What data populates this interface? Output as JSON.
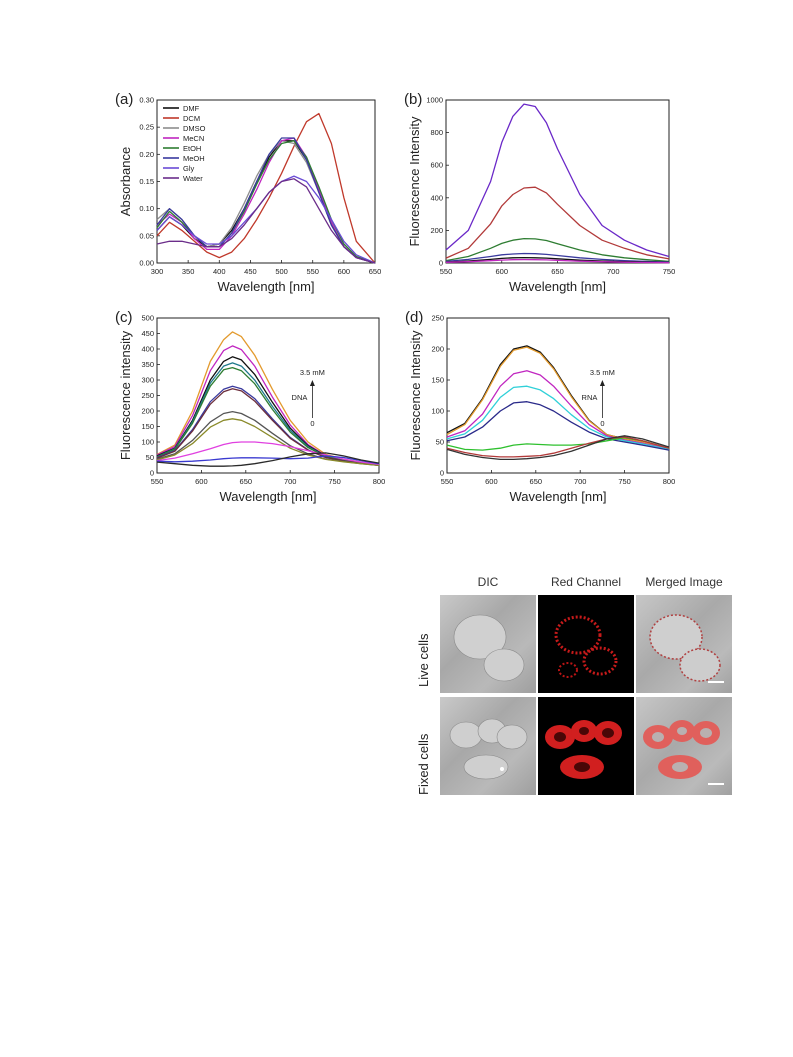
{
  "chart_data": [
    {
      "panel": "(a)",
      "type": "line",
      "xlabel": "Wavelength [nm]",
      "ylabel": "Absorbance",
      "xlim": [
        300,
        650
      ],
      "ylim": [
        0,
        0.3
      ],
      "xticks": [
        300,
        350,
        400,
        450,
        500,
        550,
        600,
        650
      ],
      "yticks": [
        0.0,
        0.05,
        0.1,
        0.15,
        0.2,
        0.25,
        0.3
      ],
      "ytick_labels": [
        "0.00",
        "0.05",
        "0.10",
        "0.15",
        "0.20",
        "0.25",
        "0.30"
      ],
      "legend": "top-left",
      "x": [
        300,
        320,
        340,
        360,
        380,
        400,
        420,
        440,
        460,
        480,
        500,
        520,
        540,
        560,
        580,
        600,
        620,
        650
      ],
      "series": [
        {
          "name": "DMF",
          "color": "#111111",
          "values": [
            0.06,
            0.085,
            0.07,
            0.045,
            0.03,
            0.035,
            0.06,
            0.1,
            0.15,
            0.195,
            0.225,
            0.225,
            0.19,
            0.13,
            0.07,
            0.03,
            0.01,
            0.0
          ]
        },
        {
          "name": "DCM",
          "color": "#c0392b",
          "values": [
            0.05,
            0.075,
            0.06,
            0.04,
            0.02,
            0.01,
            0.02,
            0.045,
            0.08,
            0.12,
            0.165,
            0.215,
            0.26,
            0.275,
            0.22,
            0.12,
            0.04,
            0.0
          ]
        },
        {
          "name": "DMSO",
          "color": "#8e8e8e",
          "values": [
            0.08,
            0.1,
            0.08,
            0.05,
            0.03,
            0.035,
            0.065,
            0.11,
            0.16,
            0.2,
            0.225,
            0.22,
            0.185,
            0.13,
            0.07,
            0.03,
            0.01,
            0.0
          ]
        },
        {
          "name": "MeCN",
          "color": "#c026c0",
          "values": [
            0.07,
            0.09,
            0.075,
            0.045,
            0.025,
            0.025,
            0.05,
            0.09,
            0.135,
            0.185,
            0.225,
            0.23,
            0.195,
            0.135,
            0.075,
            0.03,
            0.01,
            0.0
          ]
        },
        {
          "name": "EtOH",
          "color": "#2e7d32",
          "values": [
            0.065,
            0.095,
            0.075,
            0.05,
            0.03,
            0.03,
            0.055,
            0.095,
            0.145,
            0.19,
            0.22,
            0.225,
            0.195,
            0.14,
            0.08,
            0.035,
            0.012,
            0.0
          ]
        },
        {
          "name": "MeOH",
          "color": "#3a3a9e",
          "values": [
            0.07,
            0.1,
            0.08,
            0.05,
            0.03,
            0.03,
            0.055,
            0.1,
            0.15,
            0.2,
            0.23,
            0.23,
            0.19,
            0.13,
            0.07,
            0.03,
            0.01,
            0.0
          ]
        },
        {
          "name": "Gly",
          "color": "#6a4bd6",
          "values": [
            0.06,
            0.085,
            0.07,
            0.05,
            0.035,
            0.035,
            0.05,
            0.075,
            0.1,
            0.13,
            0.15,
            0.16,
            0.15,
            0.12,
            0.08,
            0.04,
            0.015,
            0.0
          ]
        },
        {
          "name": "Water",
          "color": "#6b2d8a",
          "values": [
            0.035,
            0.04,
            0.04,
            0.035,
            0.03,
            0.03,
            0.045,
            0.07,
            0.1,
            0.13,
            0.15,
            0.155,
            0.14,
            0.1,
            0.06,
            0.03,
            0.01,
            0.0
          ]
        }
      ]
    },
    {
      "panel": "(b)",
      "type": "line",
      "xlabel": "Wavelength [nm]",
      "ylabel": "Fluorescence Intensity",
      "xlim": [
        550,
        750
      ],
      "ylim": [
        0,
        1000
      ],
      "xticks": [
        550,
        600,
        650,
        700,
        750
      ],
      "yticks": [
        0,
        200,
        400,
        600,
        800,
        1000
      ],
      "x": [
        550,
        570,
        590,
        600,
        610,
        620,
        630,
        640,
        650,
        670,
        690,
        710,
        730,
        750
      ],
      "series": [
        {
          "color": "#6a28c8",
          "values": [
            80,
            200,
            500,
            740,
            900,
            975,
            960,
            860,
            700,
            420,
            230,
            140,
            80,
            40
          ]
        },
        {
          "color": "#b23a3a",
          "values": [
            30,
            90,
            240,
            350,
            420,
            460,
            465,
            430,
            360,
            230,
            140,
            90,
            50,
            25
          ]
        },
        {
          "color": "#2e7d32",
          "values": [
            15,
            40,
            90,
            120,
            140,
            150,
            148,
            138,
            118,
            80,
            50,
            32,
            20,
            10
          ]
        },
        {
          "color": "#3a3a9e",
          "values": [
            10,
            22,
            40,
            50,
            55,
            58,
            57,
            53,
            46,
            32,
            22,
            15,
            10,
            6
          ]
        },
        {
          "color": "#111111",
          "values": [
            5,
            12,
            22,
            28,
            32,
            33,
            32,
            30,
            26,
            18,
            12,
            8,
            5,
            3
          ]
        },
        {
          "color": "#c026c0",
          "values": [
            4,
            8,
            14,
            18,
            20,
            21,
            20,
            19,
            16,
            11,
            8,
            5,
            3,
            2
          ]
        }
      ]
    },
    {
      "panel": "(c)",
      "type": "line",
      "xlabel": "Wavelength [nm]",
      "ylabel": "Fluorescence intensity",
      "xlim": [
        550,
        800
      ],
      "ylim": [
        0,
        500
      ],
      "xticks": [
        550,
        600,
        650,
        700,
        750,
        800
      ],
      "yticks": [
        0,
        50,
        100,
        150,
        200,
        250,
        300,
        350,
        400,
        450,
        500
      ],
      "annotation": {
        "top": "3.5 mM",
        "label": "DNA",
        "bottom": "0"
      },
      "x": [
        550,
        570,
        590,
        610,
        625,
        635,
        645,
        660,
        680,
        700,
        720,
        740,
        760,
        780,
        800
      ],
      "series": [
        {
          "color": "#e39a2d",
          "values": [
            60,
            90,
            200,
            360,
            430,
            455,
            440,
            380,
            270,
            170,
            100,
            60,
            45,
            35,
            28
          ]
        },
        {
          "color": "#c026c0",
          "values": [
            58,
            85,
            185,
            330,
            395,
            410,
            398,
            345,
            245,
            155,
            92,
            56,
            42,
            33,
            27
          ]
        },
        {
          "color": "#111111",
          "values": [
            55,
            80,
            170,
            300,
            360,
            375,
            365,
            318,
            228,
            145,
            88,
            55,
            42,
            33,
            27
          ]
        },
        {
          "color": "#1f7a8c",
          "values": [
            53,
            78,
            165,
            290,
            345,
            355,
            345,
            300,
            215,
            138,
            85,
            54,
            41,
            32,
            26
          ]
        },
        {
          "color": "#2e7d32",
          "values": [
            52,
            76,
            160,
            280,
            333,
            340,
            330,
            288,
            205,
            132,
            82,
            53,
            40,
            32,
            26
          ]
        },
        {
          "color": "#3a3a9e",
          "values": [
            50,
            72,
            140,
            230,
            270,
            280,
            272,
            240,
            175,
            115,
            75,
            50,
            39,
            31,
            25
          ]
        },
        {
          "color": "#6b2d3b",
          "values": [
            48,
            70,
            135,
            222,
            262,
            272,
            265,
            232,
            170,
            112,
            74,
            50,
            39,
            31,
            25
          ]
        },
        {
          "color": "#555555",
          "values": [
            45,
            62,
            105,
            165,
            192,
            198,
            192,
            170,
            128,
            88,
            62,
            45,
            37,
            30,
            25
          ]
        },
        {
          "color": "#8a8a2a",
          "values": [
            42,
            58,
            95,
            148,
            170,
            175,
            170,
            150,
            115,
            80,
            58,
            44,
            36,
            30,
            25
          ]
        },
        {
          "color": "#e040e0",
          "values": [
            40,
            48,
            62,
            78,
            92,
            98,
            100,
            100,
            95,
            85,
            72,
            58,
            45,
            35,
            28
          ]
        },
        {
          "color": "#3a3ad0",
          "values": [
            38,
            36,
            38,
            42,
            46,
            48,
            49,
            49,
            48,
            46,
            48,
            55,
            50,
            40,
            30
          ]
        },
        {
          "color": "#2a2a2a",
          "values": [
            35,
            30,
            25,
            22,
            22,
            23,
            25,
            30,
            40,
            52,
            62,
            65,
            55,
            42,
            32
          ]
        }
      ]
    },
    {
      "panel": "(d)",
      "type": "line",
      "xlabel": "Wavelength [nm]",
      "ylabel": "Fluorescence Intensity",
      "xlim": [
        550,
        800
      ],
      "ylim": [
        0,
        250
      ],
      "xticks": [
        550,
        600,
        650,
        700,
        750,
        800
      ],
      "yticks": [
        0,
        50,
        100,
        150,
        200,
        250
      ],
      "annotation": {
        "top": "3.5 mM",
        "label": "RNA",
        "bottom": "0"
      },
      "x": [
        550,
        570,
        590,
        610,
        625,
        640,
        655,
        670,
        690,
        710,
        730,
        750,
        770,
        800
      ],
      "series": [
        {
          "color": "#111111",
          "values": [
            65,
            80,
            120,
            175,
            200,
            205,
            195,
            170,
            125,
            85,
            62,
            55,
            50,
            40
          ]
        },
        {
          "color": "#e39a2d",
          "values": [
            62,
            78,
            118,
            172,
            198,
            203,
            193,
            168,
            123,
            84,
            62,
            55,
            50,
            40
          ]
        },
        {
          "color": "#c026c0",
          "values": [
            58,
            68,
            95,
            140,
            160,
            165,
            158,
            140,
            108,
            78,
            60,
            53,
            48,
            39
          ]
        },
        {
          "color": "#2fd0d8",
          "values": [
            55,
            63,
            85,
            122,
            138,
            140,
            134,
            120,
            94,
            72,
            58,
            52,
            47,
            38
          ]
        },
        {
          "color": "#2a2a8a",
          "values": [
            52,
            58,
            74,
            100,
            113,
            115,
            110,
            100,
            82,
            66,
            55,
            50,
            45,
            37
          ]
        },
        {
          "color": "#2ec02e",
          "values": [
            45,
            38,
            37,
            40,
            45,
            47,
            46,
            45,
            45,
            47,
            52,
            57,
            52,
            40
          ]
        },
        {
          "color": "#b23a3a",
          "values": [
            40,
            33,
            28,
            26,
            26,
            27,
            28,
            32,
            40,
            48,
            55,
            58,
            52,
            40
          ]
        },
        {
          "color": "#333333",
          "values": [
            38,
            30,
            25,
            22,
            22,
            23,
            25,
            28,
            35,
            45,
            55,
            60,
            55,
            42
          ]
        }
      ]
    }
  ],
  "cells_figure": {
    "columns": [
      "DIC",
      "Red Channel",
      "Merged Image"
    ],
    "rows": [
      "Live cells",
      "Fixed cells"
    ]
  }
}
